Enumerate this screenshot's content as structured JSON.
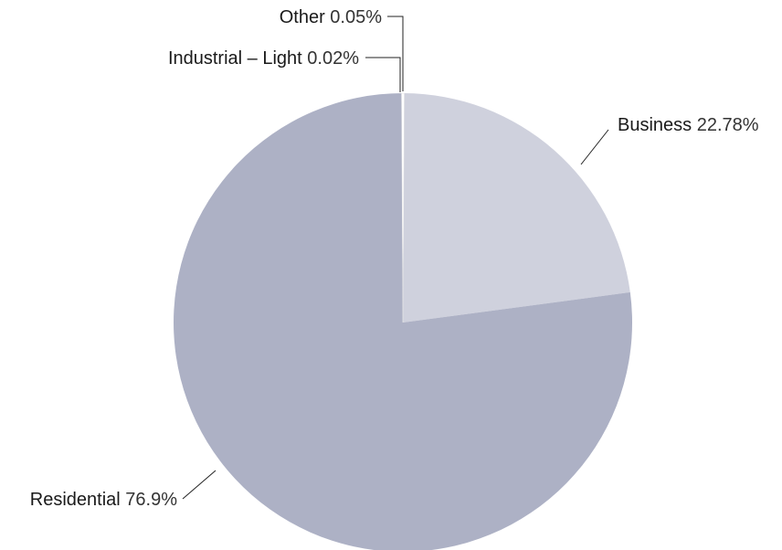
{
  "chart_data": {
    "type": "pie",
    "title": "",
    "slices": [
      {
        "label": "Business",
        "value": 22.78,
        "value_label": "22.78%",
        "color": "#cfd1dd"
      },
      {
        "label": "Residential",
        "value": 76.9,
        "value_label": "76.9%",
        "color": "#adb1c5"
      },
      {
        "label": "Industrial – Light",
        "value": 0.02,
        "value_label": "0.02%",
        "color": "#ffffff"
      },
      {
        "label": "Other",
        "value": 0.05,
        "value_label": "0.05%",
        "color": "#5b6491"
      }
    ],
    "legend": "none"
  }
}
